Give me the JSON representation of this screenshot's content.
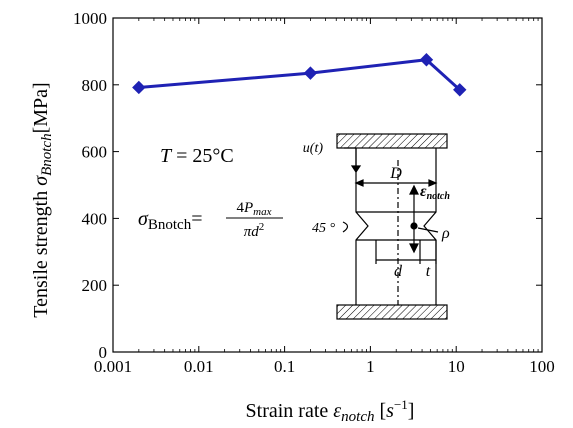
{
  "chart_data": {
    "type": "line",
    "xscale": "log",
    "xlim": [
      0.001,
      100
    ],
    "ylim": [
      0,
      1000
    ],
    "x_ticks": [
      0.001,
      0.01,
      0.1,
      1,
      10,
      100
    ],
    "x_tick_labels": [
      "0.001",
      "0.01",
      "0.1",
      "1",
      "10",
      "100"
    ],
    "y_ticks": [
      0,
      200,
      400,
      600,
      800,
      1000
    ],
    "y_tick_labels": [
      "0",
      "200",
      "400",
      "600",
      "800",
      "1000"
    ],
    "xlabel": {
      "prefix": "Strain rate ",
      "symbol": "ε",
      "subscript": "notch",
      "unit_open": " [",
      "unit_base": "s",
      "unit_exp": "−1",
      "unit_close": "]"
    },
    "ylabel": {
      "prefix": "Tensile strength ",
      "symbol": "σ",
      "subscript": "Bnotch",
      "unit": "[MPa]"
    },
    "series": [
      {
        "x": [
          0.002,
          0.2,
          4.5,
          11
        ],
        "y": [
          792,
          835,
          875,
          785
        ],
        "color": "#1f22b4",
        "marker": "diamond"
      }
    ],
    "grid": false,
    "legend": null
  },
  "annotations": {
    "temperature": {
      "symbol": "T",
      "text": " = 25°C"
    },
    "formula": {
      "lhs_symbol": "σ",
      "lhs_sub": "Bnotch",
      "equals": "=",
      "num_coef": "4",
      "num_var": "P",
      "num_sub": "max",
      "den_pi": "π",
      "den_var": "d",
      "den_exp": "2"
    }
  },
  "specimen": {
    "displacement_label": "u(t)",
    "diameter_label": "D",
    "notch_diameter_label": "d",
    "thickness_label": "t",
    "radius_label": "ρ",
    "angle_label": "45 °",
    "strain_label_symbol": "ε",
    "strain_label_sub": "notch",
    "stroke_color": "#000000"
  }
}
